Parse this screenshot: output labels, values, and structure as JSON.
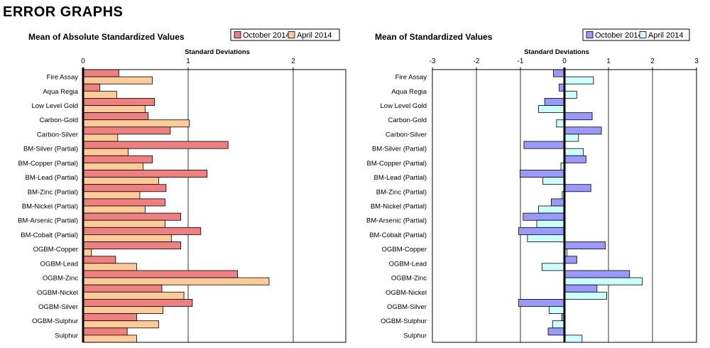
{
  "page": {
    "title": "ERROR GRAPHS"
  },
  "chart_data": [
    {
      "type": "bar",
      "orientation": "horizontal",
      "title": "Mean of Absolute Standardized Values",
      "xlabel": "Standard Deviations",
      "ylabel": "",
      "xlim": [
        0,
        2.5
      ],
      "xticks": [
        0,
        1,
        2
      ],
      "grid": true,
      "legend_position": "top-right",
      "categories": [
        "Fire Assay",
        "Aqua Regia",
        "Low Level Gold",
        "Carbon-Gold",
        "Carbon-Silver",
        "BM-Silver (Partial)",
        "BM-Copper (Partial)",
        "BM-Lead (Partial)",
        "BM-Zinc (Partial)",
        "BM-Nickel (Partial)",
        "BM-Arsenic (Partial)",
        "BM-Cobalt (Partial)",
        "OGBM-Copper",
        "OGBM-Lead",
        "OGBM-Zinc",
        "OGBM-Nickel",
        "OGBM-Silver",
        "OGBM-Sulphur",
        "Sulphur"
      ],
      "series": [
        {
          "name": "October 2014",
          "color": "#F08080",
          "values": [
            0.34,
            0.16,
            0.68,
            0.62,
            0.83,
            1.38,
            0.66,
            1.18,
            0.79,
            0.78,
            0.93,
            1.12,
            0.93,
            0.31,
            1.47,
            0.75,
            1.04,
            0.51,
            0.42
          ]
        },
        {
          "name": "April 2014",
          "color": "#FFCC99",
          "values": [
            0.66,
            0.32,
            0.59,
            1.01,
            0.33,
            0.43,
            0.57,
            0.72,
            0.54,
            0.59,
            0.78,
            0.84,
            0.08,
            0.51,
            1.77,
            0.96,
            0.76,
            0.72,
            0.51
          ]
        }
      ]
    },
    {
      "type": "bar",
      "orientation": "horizontal",
      "title": "Mean of Standardized Values",
      "xlabel": "Standard Deviations",
      "ylabel": "",
      "xlim": [
        -3,
        3
      ],
      "xticks": [
        -3,
        -2,
        -1,
        0,
        1,
        2,
        3
      ],
      "grid": true,
      "legend_position": "top-right",
      "categories": [
        "Fire Assay",
        "Aqua Regia",
        "Low Level Gold",
        "Carbon-Gold",
        "Carbon-Silver",
        "BM-Silver (Partial)",
        "BM-Copper (Partial)",
        "BM-Lead (Partial)",
        "BM-Zinc (Partial)",
        "BM-Nickel (Partial)",
        "BM-Arsenic (Partial)",
        "BM-Cobalt (Partial)",
        "OGBM-Copper",
        "OGBM-Lead",
        "OGBM-Zinc",
        "OGBM-Nickel",
        "OGBM-Silver",
        "OGBM-Sulphur",
        "Sulphur"
      ],
      "series": [
        {
          "name": "October 2014",
          "color": "#9999FF",
          "values": [
            -0.25,
            -0.12,
            -0.45,
            0.63,
            0.84,
            -0.92,
            0.49,
            -1.01,
            0.6,
            -0.3,
            -0.94,
            -1.04,
            0.93,
            0.28,
            1.48,
            0.74,
            -1.04,
            -0.06,
            -0.37
          ]
        },
        {
          "name": "April 2014",
          "color": "#CCFFFF",
          "values": [
            0.66,
            0.28,
            -0.59,
            -0.18,
            0.32,
            0.43,
            -0.08,
            -0.49,
            -0.05,
            -0.59,
            -0.63,
            -0.84,
            0.06,
            -0.51,
            1.77,
            0.96,
            -0.35,
            -0.27,
            0.4
          ]
        }
      ]
    }
  ]
}
